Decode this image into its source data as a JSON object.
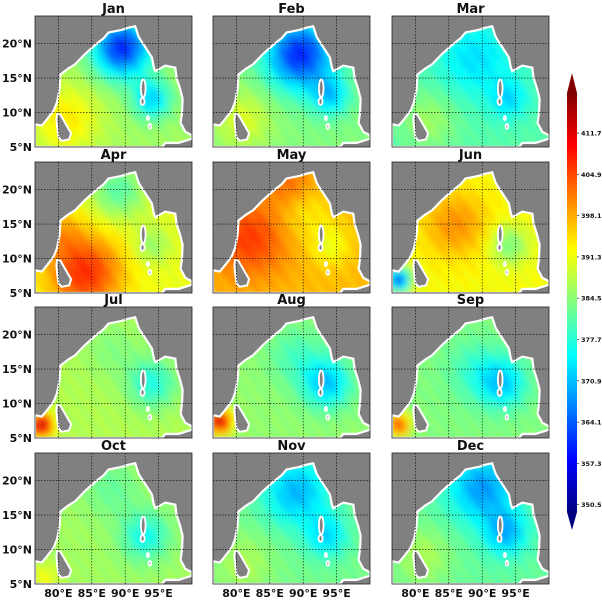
{
  "panels": [
    {
      "title": "Jan"
    },
    {
      "title": "Feb"
    },
    {
      "title": "Mar"
    },
    {
      "title": "Apr"
    },
    {
      "title": "May"
    },
    {
      "title": "Jun"
    },
    {
      "title": "Jul"
    },
    {
      "title": "Aug"
    },
    {
      "title": "Sep"
    },
    {
      "title": "Oct"
    },
    {
      "title": "Nov"
    },
    {
      "title": "Dec"
    }
  ],
  "lat_ticks": [
    {
      "value": 20,
      "label": "20°N"
    },
    {
      "value": 15,
      "label": "15°N"
    },
    {
      "value": 10,
      "label": "10°N"
    },
    {
      "value": 5,
      "label": "5°N"
    }
  ],
  "lon_ticks": [
    {
      "value": 80,
      "label": "80°E"
    },
    {
      "value": 85,
      "label": "85°E"
    },
    {
      "value": 90,
      "label": "90°E"
    },
    {
      "value": 95,
      "label": "95°E"
    }
  ],
  "map_extent": {
    "lon": [
      76.5,
      100
    ],
    "lat": [
      5,
      24
    ]
  },
  "colors": {
    "land": "#808080",
    "coast": "#ffffff",
    "grid": "#000000"
  },
  "colorbar": {
    "vmin": 349.3,
    "vmax": 418.3,
    "extend": "both",
    "colormap": "jet",
    "colormap_stops": [
      "#000080",
      "#0000ff",
      "#0080ff",
      "#00ffff",
      "#80ff80",
      "#ffff00",
      "#ff8000",
      "#ff0000",
      "#800000"
    ],
    "ticks": [
      {
        "value": 411.7,
        "label": "411.7"
      },
      {
        "value": 404.9,
        "label": "404.9"
      },
      {
        "value": 398.1,
        "label": "398.1"
      },
      {
        "value": 391.3,
        "label": "391.3"
      },
      {
        "value": 384.5,
        "label": "384.5"
      },
      {
        "value": 377.7,
        "label": "377.7"
      },
      {
        "value": 370.9,
        "label": "370.9"
      },
      {
        "value": 364.1,
        "label": "364.1"
      },
      {
        "value": 357.3,
        "label": "357.3"
      },
      {
        "value": 350.5,
        "label": "350.5"
      }
    ]
  }
}
